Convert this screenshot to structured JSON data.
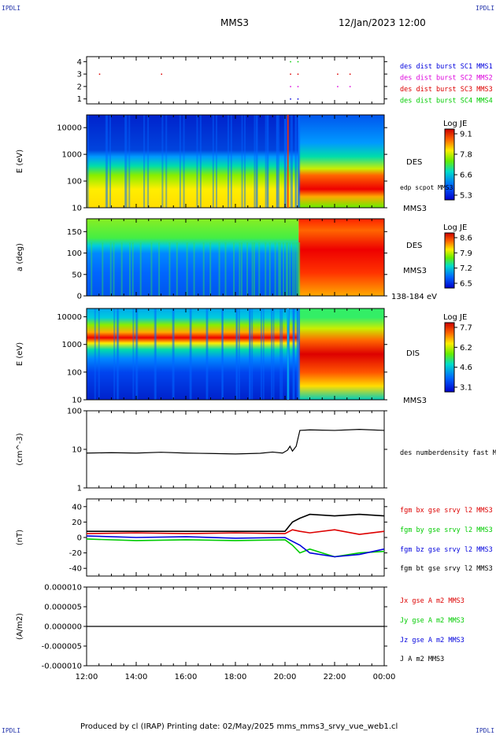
{
  "corners": {
    "top_left": "IPDLI",
    "top_right": "IPDLI",
    "bottom_left": "IPDLI",
    "bottom_right": "IPDLI"
  },
  "header": {
    "spacecraft": "MMS3",
    "datetime": "12/Jan/2023 12:00"
  },
  "footer": {
    "text": "Produced by cl (IRAP)   Printing date: 02/May/2025   mms_mms3_srvy_vue_web1.cl"
  },
  "colors": {
    "red": "#dd0000",
    "green": "#00cc00",
    "blue": "#0000dd",
    "magenta": "#dd00dd",
    "black": "#000000"
  },
  "chart_data": [
    {
      "type": "scatter",
      "panel": "burst",
      "ylim": [
        1,
        4
      ],
      "yticks": [
        "1",
        "2",
        "3",
        "4"
      ],
      "series": [
        {
          "name": "des dist burst SC1 MMS1",
          "level": 1,
          "color": "#0000dd",
          "x": [
            20.2,
            20.5
          ]
        },
        {
          "name": "des dist burst SC2 MMS2",
          "level": 2,
          "color": "#dd00dd",
          "x": [
            20.2,
            20.5,
            22.1,
            22.6
          ]
        },
        {
          "name": "des dist burst SC3 MMS3",
          "level": 3,
          "color": "#dd0000",
          "x": [
            12.5,
            15.0,
            20.2,
            20.5,
            22.1,
            22.6
          ]
        },
        {
          "name": "des dist burst SC4 MMS4",
          "level": 4,
          "color": "#00cc00",
          "x": [
            20.2,
            20.5
          ]
        }
      ]
    },
    {
      "type": "heatmap",
      "panel": "des-energy",
      "ylabel": "E (eV)",
      "ylog": true,
      "ylim": [
        10,
        30000
      ],
      "yticks": [
        "10",
        "100",
        "1000",
        "10000"
      ],
      "right_labels": [
        "DES",
        "edp scpot MMS3",
        "MMS3"
      ],
      "colorbar": {
        "title": "Log JE",
        "ticks": [
          "9.1",
          "7.8",
          "6.6",
          "5.3"
        ]
      }
    },
    {
      "type": "heatmap",
      "panel": "des-pitch",
      "ylabel": "a (deg)",
      "ylim": [
        0,
        180
      ],
      "yticks": [
        "0",
        "50",
        "100",
        "150"
      ],
      "right_labels": [
        "DES",
        "MMS3",
        "138-184 eV"
      ],
      "colorbar": {
        "title": "Log JE",
        "ticks": [
          "8.6",
          "7.9",
          "7.2",
          "6.5"
        ]
      }
    },
    {
      "type": "heatmap",
      "panel": "dis-energy",
      "ylabel": "E (eV)",
      "ylog": true,
      "ylim": [
        10,
        20000
      ],
      "yticks": [
        "10",
        "100",
        "1000",
        "10000"
      ],
      "right_labels": [
        "DIS",
        "MMS3"
      ],
      "colorbar": {
        "title": "Log JE",
        "ticks": [
          "7.7",
          "6.2",
          "4.6",
          "3.1"
        ]
      }
    },
    {
      "type": "line",
      "panel": "density",
      "ylabel": "(cm^-3)",
      "ylog": true,
      "ylim": [
        1,
        100
      ],
      "yticks": [
        "1",
        "10",
        "100"
      ],
      "series": [
        {
          "name": "des numberdensity fast M",
          "color": "#000000",
          "x": [
            12.0,
            13.0,
            14.0,
            15.0,
            16.0,
            17.0,
            18.0,
            19.0,
            19.5,
            19.9,
            20.1,
            20.2,
            20.3,
            20.45,
            20.6,
            21.0,
            22.0,
            23.0,
            24.0
          ],
          "y": [
            8.0,
            8.2,
            8.0,
            8.4,
            8.0,
            7.8,
            7.6,
            7.9,
            8.5,
            8.0,
            9.5,
            12.0,
            9.0,
            12.0,
            31,
            32,
            31,
            33,
            31
          ]
        }
      ]
    },
    {
      "type": "line",
      "panel": "fgm",
      "ylabel": "(nT)",
      "ylim": [
        -50,
        50
      ],
      "yticks": [
        "-40",
        "-20",
        "0",
        "20",
        "40"
      ],
      "series": [
        {
          "name": "fgm bx gse srvy l2 MMS3",
          "color": "#dd0000",
          "x": [
            12,
            14,
            16,
            18,
            20,
            20.3,
            20.6,
            21,
            22,
            23,
            24
          ],
          "y": [
            5,
            6,
            5,
            6,
            5,
            10,
            8,
            6,
            10,
            4,
            8
          ]
        },
        {
          "name": "fgm by gse srvy l2 MMS3",
          "color": "#00cc00",
          "x": [
            12,
            14,
            16,
            18,
            20,
            20.3,
            20.6,
            21,
            22,
            23,
            24
          ],
          "y": [
            -2,
            -4,
            -3,
            -4,
            -3,
            -10,
            -20,
            -15,
            -25,
            -20,
            -18
          ]
        },
        {
          "name": "fgm bz gse srvy l2 MMS3",
          "color": "#0000dd",
          "x": [
            12,
            14,
            16,
            18,
            20,
            20.3,
            20.6,
            21,
            22,
            23,
            24
          ],
          "y": [
            2,
            0,
            1,
            -1,
            0,
            -5,
            -10,
            -20,
            -25,
            -22,
            -15
          ]
        },
        {
          "name": "fgm bt gse srvy l2 MMS3",
          "color": "#000000",
          "x": [
            12,
            14,
            16,
            18,
            20,
            20.3,
            20.6,
            21,
            22,
            23,
            24
          ],
          "y": [
            8,
            8,
            8,
            8,
            8,
            20,
            25,
            30,
            28,
            30,
            28
          ]
        }
      ]
    },
    {
      "type": "line",
      "panel": "current",
      "ylabel": "(A/m2)",
      "ylim": [
        -1e-05,
        1e-05
      ],
      "yticks": [
        "-0.000010",
        "-0.000005",
        "0.000000",
        "0.000005",
        "0.000010"
      ],
      "series": [
        {
          "name": "Jx gse A m2 MMS3",
          "color": "#dd0000"
        },
        {
          "name": "Jy gse A m2 MMS3",
          "color": "#00cc00"
        },
        {
          "name": "Jz gse A m2 MMS3",
          "color": "#0000dd"
        },
        {
          "name": "J A m2 MMS3",
          "color": "#000000"
        }
      ],
      "xticks": [
        "12:00",
        "14:00",
        "16:00",
        "18:00",
        "20:00",
        "22:00",
        "00:00"
      ],
      "xlim": [
        "12:00",
        "00:00"
      ]
    }
  ]
}
